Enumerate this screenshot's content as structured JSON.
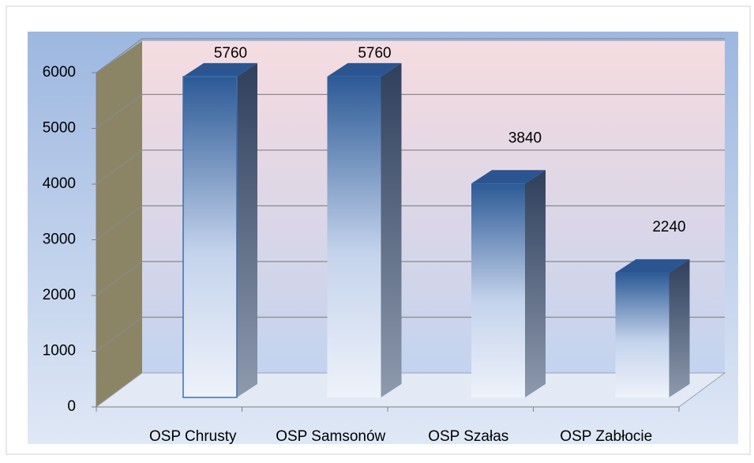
{
  "chart_data": {
    "type": "bar3d",
    "categories": [
      "OSP Chrusty",
      "OSP Samsonów",
      "OSP Szałas",
      "OSP Zabłocie"
    ],
    "values": [
      5760,
      5760,
      3840,
      2240
    ],
    "color": "#2c5a96",
    "ylim": [
      0,
      6000
    ],
    "yticks": [
      0,
      1000,
      2000,
      3000,
      4000,
      5000,
      6000
    ],
    "grid": true
  }
}
